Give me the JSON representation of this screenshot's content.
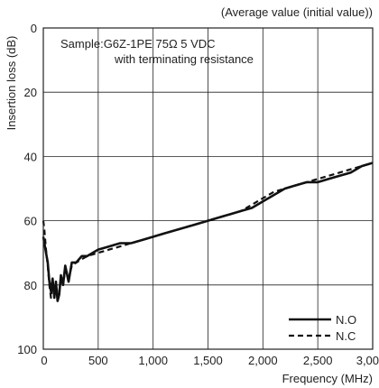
{
  "chart_data": {
    "type": "line",
    "title": "(Average value (initial value))",
    "xlabel": "Frequency (MHz)",
    "ylabel": "Insertion loss (dB)",
    "xlim": [
      0,
      3000
    ],
    "ylim": [
      0,
      100
    ],
    "y_inverted": true,
    "grid": true,
    "legend_position": "bottom-right",
    "x_ticks": [
      0,
      500,
      1000,
      1500,
      2000,
      2500,
      3000
    ],
    "x_tick_labels": [
      "0",
      "500",
      "1,000",
      "1,500",
      "2,000",
      "2,500",
      "3,000"
    ],
    "y_ticks": [
      0,
      20,
      40,
      60,
      80,
      100
    ],
    "y_tick_labels": [
      "0",
      "20",
      "40",
      "60",
      "80",
      "100"
    ],
    "annotation_lines": [
      "Sample:G6Z-1PE 75Ω 5 VDC",
      "with terminating resistance"
    ],
    "series": [
      {
        "name": "N.O",
        "style": "solid",
        "x": [
          0,
          10,
          25,
          40,
          55,
          70,
          85,
          100,
          115,
          130,
          145,
          160,
          180,
          200,
          230,
          260,
          300,
          350,
          400,
          500,
          600,
          700,
          800,
          900,
          1000,
          1100,
          1200,
          1300,
          1400,
          1500,
          1600,
          1700,
          1800,
          1900,
          2000,
          2100,
          2200,
          2300,
          2400,
          2500,
          2600,
          2700,
          2800,
          2900,
          3000
        ],
        "y": [
          65,
          67,
          70,
          73,
          79,
          82,
          78,
          84,
          79,
          85,
          83,
          77,
          80,
          74,
          79,
          73,
          73,
          71,
          71,
          69,
          68,
          67,
          67,
          66,
          65,
          64,
          63,
          62,
          61,
          60,
          59,
          58,
          57,
          56,
          54,
          52,
          50,
          49,
          48,
          48,
          47,
          46,
          45,
          43,
          42
        ]
      },
      {
        "name": "N.C",
        "style": "dashed",
        "x": [
          0,
          10,
          25,
          40,
          55,
          70,
          85,
          100,
          115,
          130,
          145,
          160,
          180,
          200,
          230,
          260,
          300,
          350,
          400,
          500,
          600,
          700,
          800,
          900,
          1000,
          1100,
          1200,
          1300,
          1400,
          1500,
          1600,
          1700,
          1800,
          1900,
          2000,
          2100,
          2200,
          2300,
          2400,
          2500,
          2600,
          2700,
          2800,
          2900,
          3000
        ],
        "y": [
          60,
          63,
          69,
          74,
          80,
          84,
          79,
          83,
          80,
          84,
          82,
          78,
          80,
          75,
          78,
          74,
          73,
          72,
          71,
          70,
          69,
          68,
          67,
          66,
          65,
          64,
          63,
          62,
          61,
          60,
          59,
          58,
          57,
          55,
          53,
          51,
          50,
          49,
          48,
          47,
          46,
          45,
          44,
          43,
          42
        ]
      }
    ]
  }
}
